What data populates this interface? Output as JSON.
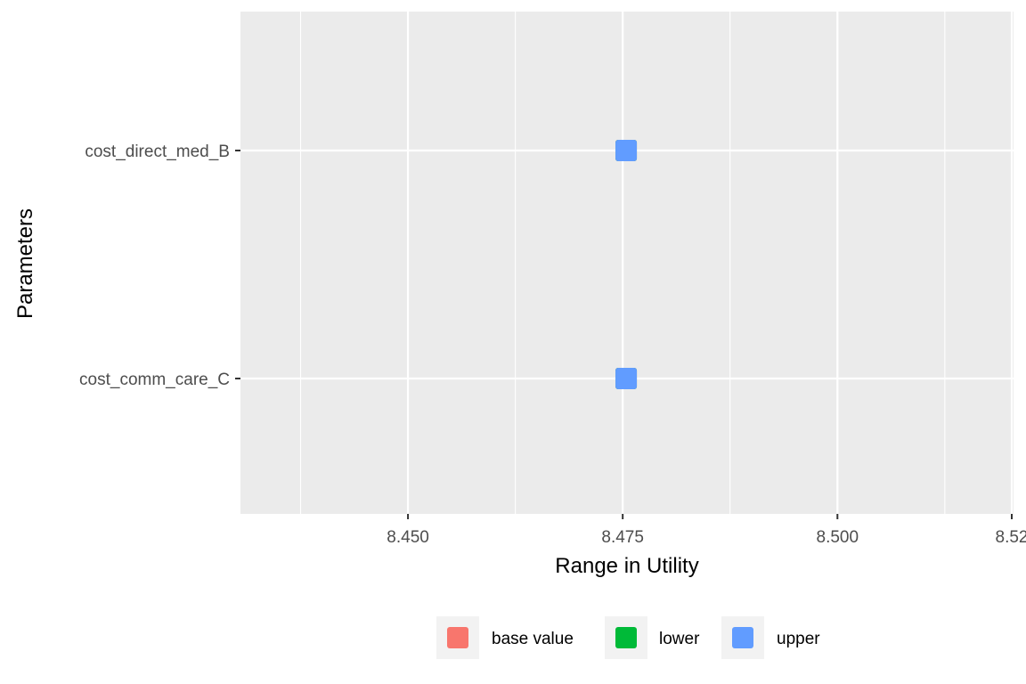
{
  "chart_data": {
    "type": "scatter",
    "title": "",
    "xlabel": "Range in Utility",
    "ylabel": "Parameters",
    "xlim": [
      8.4305,
      8.5205
    ],
    "x_ticks": [
      8.45,
      8.475,
      8.5,
      8.525
    ],
    "x_tick_labels": [
      "8.450",
      "8.475",
      "8.500",
      "8.52"
    ],
    "categories": [
      "cost_direct_med_B",
      "cost_comm_care_C"
    ],
    "series": [
      {
        "name": "base value",
        "color": "#F8766D",
        "values": [
          8.4754,
          8.4754
        ]
      },
      {
        "name": "lower",
        "color": "#00BA38",
        "values": [
          8.4754,
          8.4754
        ]
      },
      {
        "name": "upper",
        "color": "#619CFF",
        "values": [
          8.4754,
          8.4754
        ]
      }
    ],
    "grid": true,
    "legend_position": "bottom",
    "panel_background": "#EBEBEB",
    "grid_color": "#FFFFFF"
  }
}
